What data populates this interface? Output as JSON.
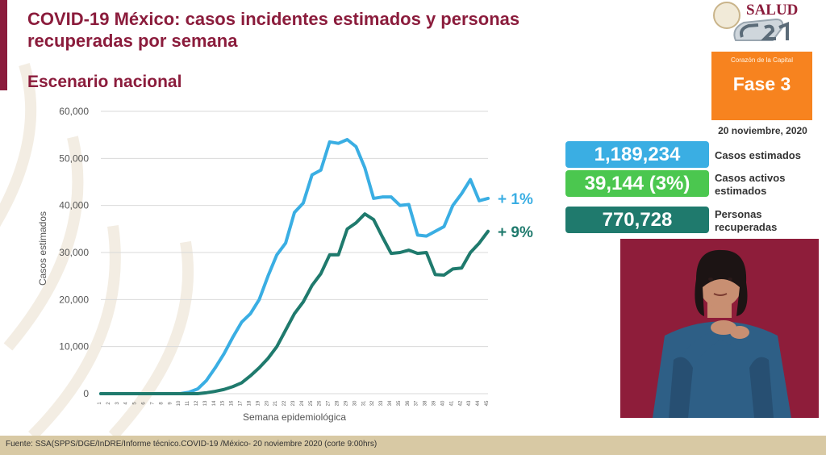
{
  "header": {
    "title_line1": "COVID-19 México: casos incidentes estimados y personas",
    "title_line2": "recuperadas por semana",
    "subtitle": "Escenario nacional"
  },
  "logo": {
    "text": "SALUD",
    "icon": "ch21-logo-icon"
  },
  "phase": {
    "subtitle": "Corazón de la Capital",
    "label": "Fase 3",
    "date": "20 noviembre, 2020"
  },
  "stats": [
    {
      "value": "1,189,234",
      "label_line1": "Casos estimados",
      "label_line2": "",
      "color": "#3aaee3"
    },
    {
      "value": "39,144 (3%)",
      "label_line1": "Casos activos",
      "label_line2": "estimados",
      "color": "#4bc74f"
    },
    {
      "value": "770,728",
      "label_line1": "Personas",
      "label_line2": "recuperadas",
      "color": "#1f7a6d"
    }
  ],
  "chart_data": {
    "type": "line",
    "xlabel": "Semana epidemiológica",
    "ylabel": "Casos estimados",
    "ylim": [
      0,
      60000
    ],
    "yticks": [
      "0",
      "10,000",
      "20,000",
      "30,000",
      "40,000",
      "50,000",
      "60,000"
    ],
    "grid": true,
    "categories": [
      1,
      2,
      3,
      4,
      5,
      6,
      7,
      8,
      9,
      10,
      11,
      12,
      13,
      14,
      15,
      16,
      17,
      18,
      19,
      20,
      21,
      22,
      23,
      24,
      25,
      26,
      27,
      28,
      29,
      30,
      31,
      32,
      33,
      34,
      35,
      36,
      37,
      38,
      39,
      40,
      41,
      42,
      43,
      44,
      45
    ],
    "series": [
      {
        "color": "#3aaee3",
        "annotation": "+ 1%",
        "values": [
          0,
          0,
          0,
          0,
          0,
          0,
          0,
          0,
          0,
          0,
          300,
          1000,
          2800,
          5500,
          8500,
          12000,
          15200,
          17000,
          20000,
          25000,
          29500,
          32000,
          38500,
          40500,
          46500,
          47500,
          53500,
          53200,
          54000,
          52500,
          48000,
          41500,
          41800,
          41800,
          40000,
          40200,
          33700,
          33500,
          34500,
          35500,
          40000,
          42500,
          45500,
          41000,
          41500
        ]
      },
      {
        "color": "#1f7a6d",
        "annotation": "+ 9%",
        "values": [
          0,
          0,
          0,
          0,
          0,
          0,
          0,
          0,
          0,
          0,
          0,
          0,
          200,
          500,
          900,
          1500,
          2300,
          3800,
          5500,
          7500,
          10000,
          13500,
          17000,
          19500,
          23000,
          25500,
          29500,
          29500,
          35000,
          36300,
          38200,
          37000,
          33300,
          29800,
          30000,
          30500,
          29800,
          30000,
          25300,
          25200,
          26500,
          26700,
          30000,
          32000,
          34500
        ]
      }
    ]
  },
  "interpreter": {
    "description_icon": "sign-language-interpreter-image"
  },
  "footer": {
    "source": "Fuente: SSA(SPPS/DGE/InDRE/Informe técnico.COVID-19 /México- 20 noviembre 2020 (corte 9:00hrs)"
  }
}
